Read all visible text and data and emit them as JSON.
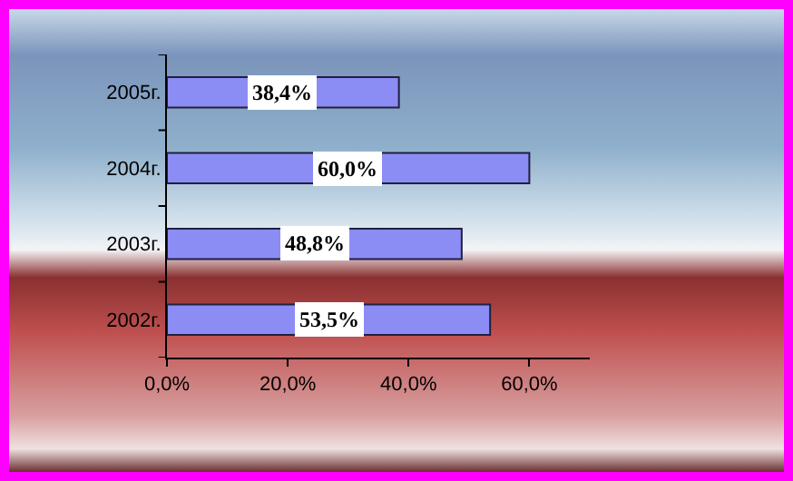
{
  "chart_data": {
    "type": "bar",
    "orientation": "horizontal",
    "categories": [
      "2005г.",
      "2004г.",
      "2003г.",
      "2002г."
    ],
    "values": [
      38.4,
      60.0,
      48.8,
      53.5
    ],
    "value_labels": [
      "38,4%",
      "60,0%",
      "48,8%",
      "53,5%"
    ],
    "color": "#8c8cf5",
    "xlim": [
      0,
      70
    ],
    "xticks": [
      {
        "value": 0,
        "label": "0,0%"
      },
      {
        "value": 20,
        "label": "20,0%"
      },
      {
        "value": 40,
        "label": "40,0%"
      },
      {
        "value": 60,
        "label": "60,0%"
      }
    ],
    "grid": false
  }
}
